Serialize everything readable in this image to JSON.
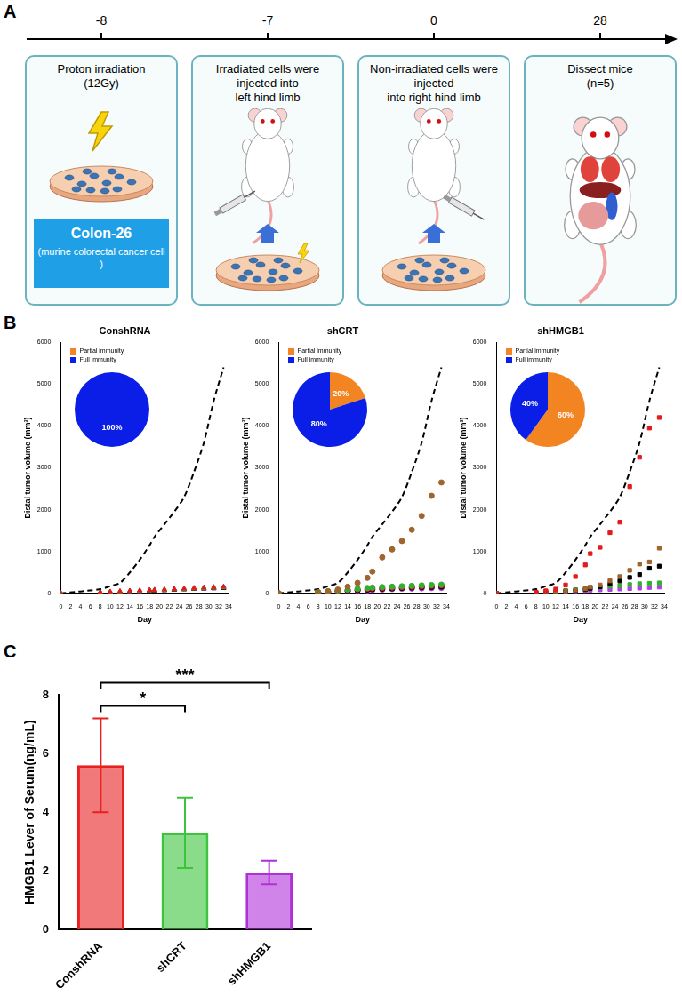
{
  "panel_labels": [
    "A",
    "B",
    "C"
  ],
  "diagram": {
    "timeline": [
      -8,
      -7,
      0,
      28
    ],
    "steps": [
      {
        "lines": [
          "Proton irradiation",
          "(12Gy)"
        ],
        "cell_box": [
          "Colon-26",
          "(murine colorectal cancer cell )"
        ]
      },
      {
        "lines": [
          "Irradiated cells were injected into",
          "left hind limb"
        ]
      },
      {
        "lines": [
          "Non-irradiated cells were injected",
          "into right hind limb"
        ]
      },
      {
        "lines": [
          "Dissect mice",
          "(n=5)"
        ]
      }
    ]
  },
  "chart_data": [
    {
      "type": "scatter",
      "title": "ConshRNA",
      "x_label": "Day",
      "y_label": "Distal tumor volume (mm³)",
      "x": [
        0,
        8,
        10,
        12,
        14,
        16,
        18,
        19,
        21,
        23,
        25,
        27,
        29,
        31,
        33
      ],
      "xlim": [
        0,
        34
      ],
      "xticks": [
        0,
        2,
        4,
        6,
        8,
        10,
        12,
        14,
        16,
        18,
        20,
        22,
        24,
        26,
        28,
        30,
        32,
        34
      ],
      "ylim": [
        0,
        6000
      ],
      "yticks": [
        0,
        1000,
        2000,
        3000,
        4000,
        5000,
        6000
      ],
      "grid": false,
      "marker": "triangle",
      "series": [
        {
          "type": "line",
          "line_style": "dashed",
          "color": "#000000",
          "values": [
            0,
            100,
            170,
            250,
            500,
            800,
            1150,
            1350,
            1650,
            1950,
            2300,
            2900,
            3600,
            4600,
            5400
          ]
        },
        {
          "color": "#e41a1c",
          "values": [
            0,
            30,
            40,
            50,
            60,
            70,
            80,
            85,
            95,
            105,
            115,
            130,
            140,
            150,
            160
          ]
        },
        {
          "color": "#33b033",
          "values": [
            0,
            25,
            35,
            45,
            55,
            65,
            75,
            80,
            90,
            100,
            110,
            120,
            130,
            140,
            150
          ]
        },
        {
          "color": "#a0642d",
          "values": [
            0,
            20,
            30,
            40,
            50,
            55,
            65,
            70,
            80,
            90,
            100,
            110,
            120,
            130,
            140
          ]
        },
        {
          "color": "#000000",
          "values": [
            0,
            20,
            25,
            35,
            45,
            50,
            60,
            65,
            75,
            85,
            95,
            105,
            115,
            120,
            130
          ]
        },
        {
          "color": "#b040e0",
          "values": [
            0,
            15,
            25,
            30,
            40,
            45,
            55,
            60,
            70,
            80,
            90,
            100,
            105,
            115,
            125
          ]
        }
      ],
      "inset": {
        "type": "pie",
        "categories": [
          "Partial immunity",
          "Full immunity"
        ],
        "values": [
          0,
          100
        ],
        "colors": [
          "#f28522",
          "#0a1ee8"
        ],
        "data_labels": true,
        "value_labels": [
          null,
          "100%"
        ],
        "legend": "top"
      }
    },
    {
      "type": "scatter",
      "title": "shCRT",
      "x_label": "Day",
      "y_label": "Distal tumor volume (mm³)",
      "x": [
        0,
        8,
        10,
        12,
        14,
        16,
        18,
        19,
        21,
        23,
        25,
        27,
        29,
        31,
        33
      ],
      "xlim": [
        0,
        34
      ],
      "xticks": [
        0,
        2,
        4,
        6,
        8,
        10,
        12,
        14,
        16,
        18,
        20,
        22,
        24,
        26,
        28,
        30,
        32,
        34
      ],
      "ylim": [
        0,
        6000
      ],
      "yticks": [
        0,
        1000,
        2000,
        3000,
        4000,
        5000,
        6000
      ],
      "grid": false,
      "marker": "circle",
      "series": [
        {
          "type": "line",
          "line_style": "dashed",
          "color": "#000000",
          "values": [
            0,
            100,
            170,
            250,
            500,
            800,
            1150,
            1350,
            1650,
            1950,
            2300,
            2900,
            3600,
            4600,
            5400
          ]
        },
        {
          "color": "#a0642d",
          "values": [
            0,
            20,
            50,
            90,
            160,
            250,
            370,
            520,
            860,
            1050,
            1250,
            1520,
            1850,
            2330,
            2650
          ]
        },
        {
          "color": "#33b033",
          "values": [
            0,
            30,
            50,
            70,
            90,
            110,
            130,
            140,
            150,
            160,
            170,
            180,
            190,
            200,
            210
          ]
        },
        {
          "color": "#e41a1c",
          "values": [
            0,
            20,
            40,
            60,
            80,
            95,
            110,
            120,
            130,
            140,
            150,
            160,
            170,
            180,
            190
          ]
        },
        {
          "color": "#000000",
          "values": [
            0,
            20,
            30,
            50,
            60,
            75,
            90,
            100,
            110,
            120,
            130,
            140,
            150,
            155,
            160
          ]
        },
        {
          "color": "#b040e0",
          "values": [
            0,
            15,
            25,
            40,
            50,
            60,
            70,
            80,
            90,
            100,
            110,
            115,
            120,
            125,
            130
          ]
        }
      ],
      "inset": {
        "type": "pie",
        "categories": [
          "Partial immunity",
          "Full immunity"
        ],
        "values": [
          20,
          80
        ],
        "colors": [
          "#f28522",
          "#0a1ee8"
        ],
        "data_labels": true,
        "value_labels": [
          "20%",
          "80%"
        ],
        "legend": "top"
      }
    },
    {
      "type": "scatter",
      "title": "shHMGB1",
      "x_label": "Day",
      "y_label": "Distal tumor volume (mm³)",
      "x": [
        0,
        8,
        10,
        12,
        14,
        16,
        18,
        19,
        21,
        23,
        25,
        27,
        29,
        31,
        33
      ],
      "xlim": [
        0,
        34
      ],
      "xticks": [
        0,
        2,
        4,
        6,
        8,
        10,
        12,
        14,
        16,
        18,
        20,
        22,
        24,
        26,
        28,
        30,
        32,
        34
      ],
      "ylim": [
        0,
        6000
      ],
      "yticks": [
        0,
        1000,
        2000,
        3000,
        4000,
        5000,
        6000
      ],
      "grid": false,
      "marker": "square",
      "series": [
        {
          "type": "line",
          "line_style": "dashed",
          "color": "#000000",
          "values": [
            0,
            100,
            170,
            250,
            500,
            800,
            1150,
            1350,
            1650,
            1950,
            2300,
            2900,
            3600,
            4600,
            5400
          ]
        },
        {
          "color": "#e41a1c",
          "values": [
            0,
            30,
            60,
            100,
            200,
            400,
            680,
            950,
            1100,
            1450,
            1700,
            2550,
            3250,
            3950,
            4200
          ]
        },
        {
          "color": "#a0642d",
          "values": [
            0,
            10,
            20,
            30,
            50,
            80,
            110,
            150,
            200,
            300,
            400,
            550,
            700,
            750,
            1080
          ]
        },
        {
          "color": "#000000",
          "values": [
            0,
            10,
            20,
            30,
            50,
            70,
            90,
            120,
            160,
            220,
            300,
            380,
            450,
            600,
            650
          ]
        },
        {
          "color": "#33b033",
          "values": [
            0,
            20,
            30,
            50,
            70,
            90,
            110,
            130,
            150,
            170,
            190,
            210,
            230,
            240,
            250
          ]
        },
        {
          "color": "#b040e0",
          "values": [
            0,
            15,
            25,
            35,
            45,
            55,
            65,
            75,
            85,
            95,
            105,
            115,
            125,
            140,
            150
          ]
        }
      ],
      "inset": {
        "type": "pie",
        "categories": [
          "Partial immunity",
          "Full immunity"
        ],
        "values": [
          60,
          40
        ],
        "colors": [
          "#f28522",
          "#0a1ee8"
        ],
        "data_labels": true,
        "value_labels": [
          "60%",
          "40%"
        ],
        "legend": "top"
      }
    },
    {
      "type": "bar",
      "categories": [
        "ConshRNA",
        "shCRT",
        "shHMGB1"
      ],
      "values": [
        5.6,
        3.3,
        1.95
      ],
      "errors": [
        1.6,
        1.2,
        0.4
      ],
      "colors": [
        "#e8201f",
        "#3cc43c",
        "#b030d8"
      ],
      "y_label": "HMGB1 Lever of Serum(ng/mL)",
      "ylim": [
        0,
        8
      ],
      "yticks": [
        0,
        2,
        4,
        6,
        8
      ],
      "grid": false,
      "annotations": [
        {
          "text": "*",
          "from": "ConshRNA",
          "to": "shCRT"
        },
        {
          "text": "***",
          "from": "ConshRNA",
          "to": "shHMGB1"
        }
      ]
    }
  ]
}
